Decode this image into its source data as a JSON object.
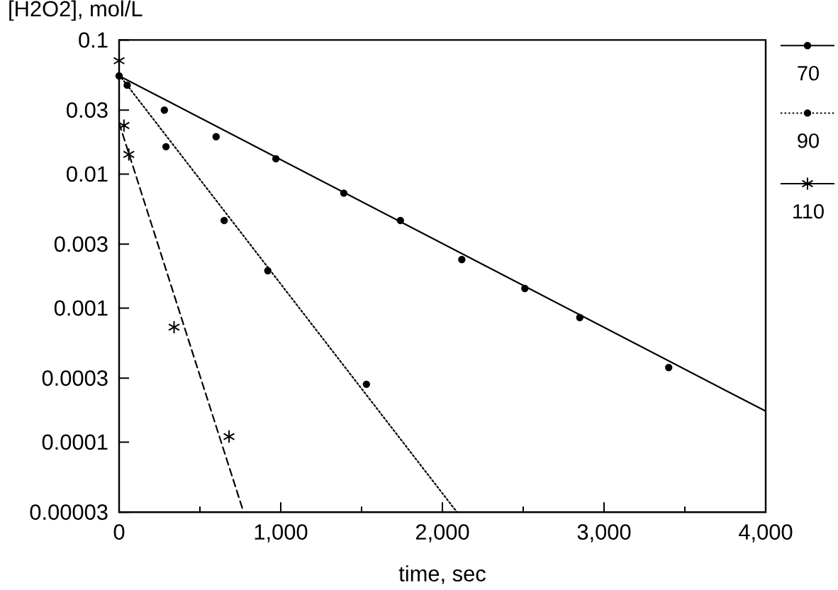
{
  "chart_data": {
    "type": "scatter",
    "ylabel": "[H2O2], mol/L",
    "xlabel": "time, sec",
    "xlim": [
      0,
      4000
    ],
    "xticks": [
      0,
      {
        "value": 500,
        "label": null
      },
      {
        "value": 1000,
        "label": "1,000"
      },
      {
        "value": 1500,
        "label": null
      },
      {
        "value": 2000,
        "label": "2,000"
      },
      {
        "value": 2500,
        "label": null
      },
      {
        "value": 3000,
        "label": "3,000"
      },
      {
        "value": 3500,
        "label": null
      },
      {
        "value": 4000,
        "label": "4,000"
      }
    ],
    "ylim": [
      3e-05,
      0.1
    ],
    "yticks": [
      {
        "value": 3e-05,
        "label": "0.00003"
      },
      {
        "value": 0.0001,
        "label": "0.0001"
      },
      {
        "value": 0.0003,
        "label": "0.0003"
      },
      {
        "value": 0.001,
        "label": "0.001"
      },
      {
        "value": 0.003,
        "label": "0.003"
      },
      {
        "value": 0.01,
        "label": "0.01"
      },
      {
        "value": 0.03,
        "label": "0.03"
      },
      {
        "value": 0.1,
        "label": "0.1"
      }
    ],
    "log": "y",
    "legend": "right",
    "series": [
      {
        "name": "70",
        "color": "#000000",
        "marker": "circle",
        "line_style": "solid",
        "x": [
          0,
          280,
          600,
          970,
          1390,
          1740,
          2120,
          2510,
          2850,
          3400
        ],
        "values": [
          0.054,
          0.03,
          0.019,
          0.013,
          0.0072,
          0.0045,
          0.0023,
          0.0014,
          0.00085,
          0.00036
        ]
      },
      {
        "name": "90",
        "color": "#000000",
        "marker": "circle",
        "line_style": "dotted",
        "x": [
          50,
          290,
          650,
          920,
          1530
        ],
        "values": [
          0.046,
          0.016,
          0.0045,
          0.0019,
          0.00027
        ]
      },
      {
        "name": "110",
        "color": "#000000",
        "marker": "cross",
        "line_style": "solid",
        "x": [
          0,
          30,
          60,
          340,
          680
        ],
        "values": [
          0.07,
          0.023,
          0.014,
          0.00072,
          0.00011
        ]
      },
      {
        "type": "line",
        "color": "#000000",
        "line_style": "solid",
        "marker": "none",
        "x": [
          0,
          4000
        ],
        "values": [
          0.054,
          0.00017
        ]
      },
      {
        "type": "line",
        "color": "#000000",
        "line_style": "dotted",
        "marker": "none",
        "x": [
          0,
          2090
        ],
        "values": [
          0.055,
          3e-05
        ]
      },
      {
        "type": "line",
        "color": "#000000",
        "line_style": "dashed",
        "marker": "none",
        "x": [
          0,
          770
        ],
        "values": [
          0.024,
          3e-05
        ]
      }
    ]
  }
}
